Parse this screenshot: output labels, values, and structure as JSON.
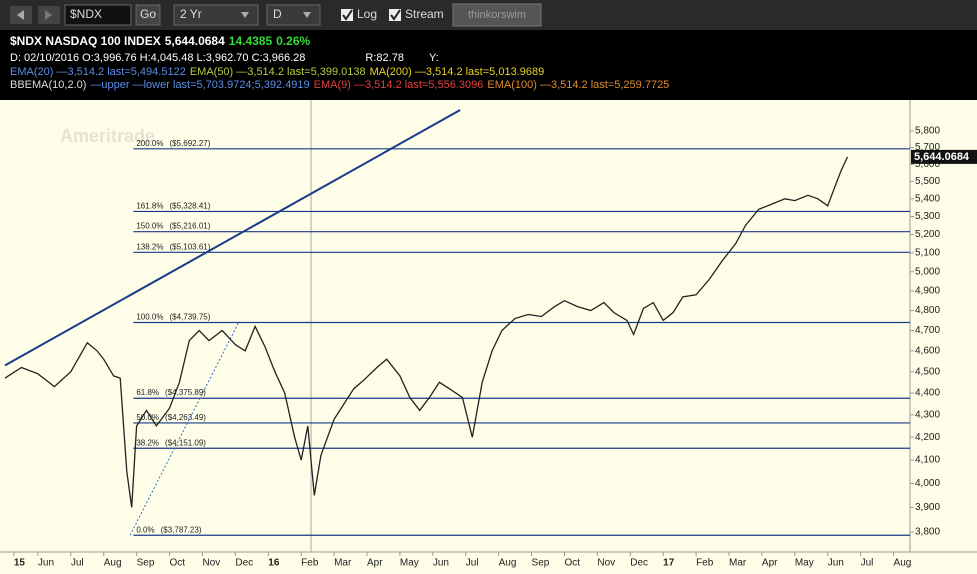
{
  "toolbar": {
    "symbol": "$NDX",
    "go": "Go",
    "period": "2 Yr",
    "aggregation": "D",
    "log": "Log",
    "stream": "Stream",
    "brand": "thinkorswim"
  },
  "info": {
    "rows": [
      [
        {
          "text": "$NDX NASDAQ 100 INDEX",
          "color": "#ffffff"
        },
        {
          "text": "5,644.0684",
          "color": "#ffffff"
        },
        {
          "text": "14.4385",
          "color": "#33dd33"
        },
        {
          "text": "0.26%",
          "color": "#33dd33"
        }
      ],
      [
        {
          "text": "D: 02/10/2016 O:3,996.76 H:4,045.48 L:3,962.70 C:3,966.28",
          "color": "#ffffff"
        },
        {
          "text": "R:82.78",
          "color": "#ffffff"
        },
        {
          "text": "Y:",
          "color": "#ffffff"
        }
      ],
      [
        {
          "text": "EMA(20) —3,514.2 last=5,494.5122",
          "color": "#5b8ee6"
        },
        {
          "text": "EMA(50) —3,514.2 last=5,399.0138",
          "color": "#b8c940"
        },
        {
          "text": "MA(200) —3,514.2 last=5,013.9689",
          "color": "#e8d020"
        }
      ],
      [
        {
          "text": "BBEMA(10,2.0)",
          "color": "#dddddd"
        },
        {
          "text": "—upper —lower last=5,703.9724;5,392.4919",
          "color": "#5b8ee6"
        },
        {
          "text": "EMA(9) —3,514.2 last=5,556.3096",
          "color": "#e04040"
        },
        {
          "text": "EMA(100) —3,514.2 last=5,259.7725",
          "color": "#e08a30"
        }
      ]
    ]
  },
  "chart_data": {
    "type": "line",
    "watermark": "Ameritrade",
    "log_scale": true,
    "grid": false,
    "current_label": "5,644.0684",
    "current_value": 5644.0684,
    "ylim": [
      3721,
      5930
    ],
    "yticks": [
      {
        "value": 3800,
        "label": "3,800"
      },
      {
        "value": 3900,
        "label": "3,900"
      },
      {
        "value": 4000,
        "label": "4,000"
      },
      {
        "value": 4100,
        "label": "4,100"
      },
      {
        "value": 4200,
        "label": "4,200"
      },
      {
        "value": 4300,
        "label": "4,300"
      },
      {
        "value": 4400,
        "label": "4,400"
      },
      {
        "value": 4500,
        "label": "4,500"
      },
      {
        "value": 4600,
        "label": "4,600"
      },
      {
        "value": 4700,
        "label": "4,700"
      },
      {
        "value": 4800,
        "label": "4,800"
      },
      {
        "value": 4900,
        "label": "4,900"
      },
      {
        "value": 5000,
        "label": "5,000"
      },
      {
        "value": 5100,
        "label": "5,100"
      },
      {
        "value": 5200,
        "label": "5,200"
      },
      {
        "value": 5300,
        "label": "5,300"
      },
      {
        "value": 5400,
        "label": "5,400"
      },
      {
        "value": 5500,
        "label": "5,500"
      },
      {
        "value": 5600,
        "label": "5,600"
      },
      {
        "value": 5700,
        "label": "5,700"
      },
      {
        "value": 5800,
        "label": "5,800"
      }
    ],
    "xlim": [
      0,
      27.5
    ],
    "xticks": [
      {
        "value": 0.27,
        "label": "15"
      },
      {
        "value": 1,
        "label": "Jun"
      },
      {
        "value": 2,
        "label": "Jul"
      },
      {
        "value": 3,
        "label": "Aug"
      },
      {
        "value": 4,
        "label": "Sep"
      },
      {
        "value": 5,
        "label": "Oct"
      },
      {
        "value": 6,
        "label": "Nov"
      },
      {
        "value": 7,
        "label": "Dec"
      },
      {
        "value": 8,
        "label": "16"
      },
      {
        "value": 9,
        "label": "Feb"
      },
      {
        "value": 10,
        "label": "Mar"
      },
      {
        "value": 11,
        "label": "Apr"
      },
      {
        "value": 12,
        "label": "May"
      },
      {
        "value": 13,
        "label": "Jun"
      },
      {
        "value": 14,
        "label": "Jul"
      },
      {
        "value": 15,
        "label": "Aug"
      },
      {
        "value": 16,
        "label": "Sep"
      },
      {
        "value": 17,
        "label": "Oct"
      },
      {
        "value": 18,
        "label": "Nov"
      },
      {
        "value": 19,
        "label": "Dec"
      },
      {
        "value": 20,
        "label": "17"
      },
      {
        "value": 21,
        "label": "Feb"
      },
      {
        "value": 22,
        "label": "Mar"
      },
      {
        "value": 23,
        "label": "Apr"
      },
      {
        "value": 24,
        "label": "May"
      },
      {
        "value": 25,
        "label": "Jun"
      },
      {
        "value": 26,
        "label": "Jul"
      },
      {
        "value": 27,
        "label": "Aug"
      }
    ],
    "series": [
      {
        "color": "#222222",
        "down_color": "#b01818",
        "x": [
          0,
          0.5,
          1,
          1.5,
          2,
          2.5,
          2.8,
          3,
          3.3,
          3.5,
          3.7,
          3.85,
          4,
          4.3,
          4.6,
          5,
          5.3,
          5.6,
          5.9,
          6.2,
          6.6,
          7,
          7.3,
          7.6,
          7.9,
          8.2,
          8.5,
          8.8,
          9,
          9.2,
          9.4,
          9.6,
          10,
          10.3,
          10.6,
          10.9,
          11.3,
          11.6,
          12,
          12.3,
          12.6,
          12.9,
          13.2,
          13.5,
          13.9,
          14.2,
          14.5,
          14.8,
          15.1,
          15.5,
          15.9,
          16.3,
          16.7,
          17,
          17.4,
          17.8,
          18.2,
          18.5,
          18.9,
          19.1,
          19.4,
          19.7,
          20,
          20.3,
          20.6,
          21,
          21.4,
          21.8,
          22.2,
          22.5,
          22.9,
          23.3,
          23.7,
          24,
          24.4,
          24.7,
          25,
          25.2,
          25.4,
          25.6
        ],
        "values": [
          4470,
          4520,
          4490,
          4430,
          4500,
          4640,
          4600,
          4560,
          4480,
          4470,
          4050,
          3900,
          4250,
          4320,
          4250,
          4330,
          4450,
          4650,
          4700,
          4650,
          4700,
          4630,
          4600,
          4720,
          4620,
          4500,
          4400,
          4200,
          4100,
          4250,
          3950,
          4120,
          4280,
          4350,
          4420,
          4460,
          4520,
          4560,
          4480,
          4380,
          4320,
          4380,
          4450,
          4420,
          4380,
          4200,
          4450,
          4600,
          4700,
          4760,
          4780,
          4770,
          4820,
          4850,
          4820,
          4800,
          4840,
          4790,
          4750,
          4680,
          4810,
          4840,
          4750,
          4790,
          4870,
          4880,
          4960,
          5060,
          5150,
          5250,
          5340,
          5370,
          5400,
          5390,
          5420,
          5400,
          5360,
          5460,
          5560,
          5644
        ]
      }
    ],
    "cursor_x": 9.3,
    "fib_start_x": 3.9,
    "fib_levels": [
      {
        "level": "200.0%",
        "price_label": "($5,692.27)",
        "value": 5692.27
      },
      {
        "level": "161.8%",
        "price_label": "($5,328.41)",
        "value": 5328.41
      },
      {
        "level": "150.0%",
        "price_label": "($5,216.01)",
        "value": 5216.01
      },
      {
        "level": "138.2%",
        "price_label": "($5,103.61)",
        "value": 5103.61
      },
      {
        "level": "100.0%",
        "price_label": "($4,739.75)",
        "value": 4739.75
      },
      {
        "level": "61.8%",
        "price_label": "($4,375.89)",
        "value": 4375.89
      },
      {
        "level": "50.0%",
        "price_label": "($4,263.49)",
        "value": 4263.49
      },
      {
        "level": "38.2%",
        "price_label": "($4,151.09)",
        "value": 4151.09
      },
      {
        "level": "0.0%",
        "price_label": "($3,787.23)",
        "value": 3787.23
      }
    ],
    "trendlines": [
      {
        "x": [
          0,
          13.83
        ],
        "values": [
          4530,
          5930
        ],
        "color": "#1a3a8a",
        "dash": false
      },
      {
        "x": [
          3.8,
          7.1
        ],
        "values": [
          3787.23,
          4739.75
        ],
        "color": "#3a6ad0",
        "dash": true
      }
    ]
  }
}
